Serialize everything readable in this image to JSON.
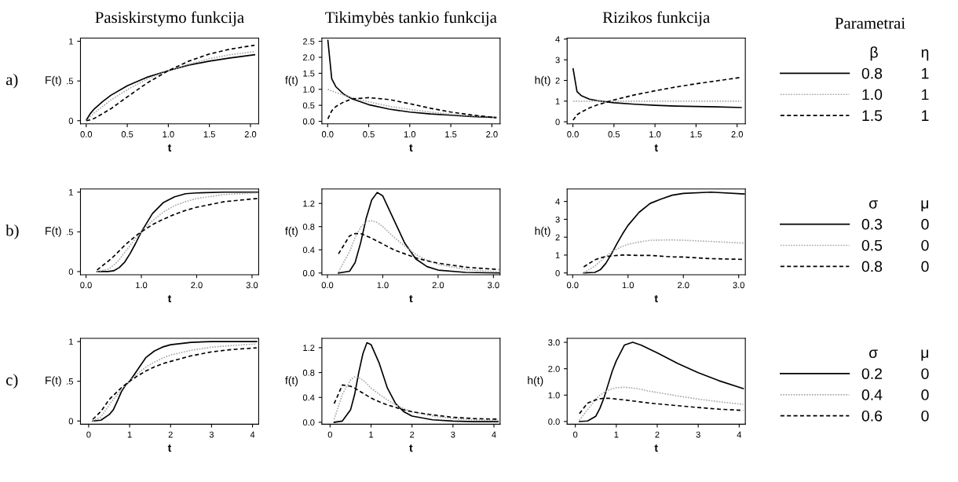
{
  "chart_data": [
    {
      "type": "line",
      "title": "Pasiskirstymo funkcija",
      "xlabel": "t",
      "ylabel": "F(t)",
      "annotations": [
        "a)"
      ],
      "x": [
        0.003,
        0.05,
        0.1,
        0.2,
        0.3,
        0.5,
        0.75,
        1.0,
        1.25,
        1.5,
        1.75,
        2.05
      ],
      "xlim": [
        -0.07,
        2.1
      ],
      "xticks": [
        {
          "value": 0,
          "label": "0.0"
        },
        0.5,
        {
          "value": 1,
          "label": "1.0"
        },
        1.5,
        {
          "value": 2,
          "label": "2.0"
        }
      ],
      "ylim": [
        -0.04,
        1.04
      ],
      "yticks": [
        0,
        {
          "value": 0.5,
          "label": ".5"
        },
        1
      ],
      "series": [
        {
          "color": "#000000",
          "line_style": "solid",
          "values": [
            0.01,
            0.09,
            0.15,
            0.24,
            0.32,
            0.44,
            0.55,
            0.63,
            0.7,
            0.75,
            0.79,
            0.83
          ]
        },
        {
          "color": "#aaaaaa",
          "line_style": "dotted",
          "values": [
            0.0,
            0.05,
            0.1,
            0.18,
            0.26,
            0.39,
            0.53,
            0.63,
            0.71,
            0.78,
            0.83,
            0.87
          ]
        },
        {
          "color": "#000000",
          "line_style": "dashed",
          "values": [
            0.0,
            0.01,
            0.03,
            0.09,
            0.15,
            0.3,
            0.48,
            0.63,
            0.75,
            0.84,
            0.9,
            0.95
          ]
        }
      ]
    },
    {
      "type": "line",
      "title": "Tikimybės tankio funkcija",
      "xlabel": "t",
      "ylabel": "f(t)",
      "x": [
        0.003,
        0.05,
        0.1,
        0.2,
        0.3,
        0.5,
        0.75,
        1.0,
        1.25,
        1.5,
        1.75,
        2.05
      ],
      "xlim": [
        -0.07,
        2.1
      ],
      "xticks": [
        {
          "value": 0,
          "label": "0.0"
        },
        0.5,
        {
          "value": 1,
          "label": "1.0"
        },
        1.5,
        {
          "value": 2,
          "label": "2.0"
        }
      ],
      "ylim": [
        -0.08,
        2.6
      ],
      "yticks": [
        {
          "value": 0,
          "label": "0.0"
        },
        0.5,
        {
          "value": 1,
          "label": "1.0"
        },
        1.5,
        {
          "value": 2,
          "label": "2.0"
        },
        2.5
      ],
      "series": [
        {
          "color": "#000000",
          "line_style": "solid",
          "values": [
            2.53,
            1.33,
            1.08,
            0.84,
            0.7,
            0.52,
            0.38,
            0.29,
            0.23,
            0.19,
            0.15,
            0.12
          ]
        },
        {
          "color": "#aaaaaa",
          "line_style": "dotted",
          "values": [
            1.0,
            0.95,
            0.9,
            0.82,
            0.74,
            0.61,
            0.47,
            0.37,
            0.29,
            0.22,
            0.17,
            0.13
          ]
        },
        {
          "color": "#000000",
          "line_style": "dashed",
          "values": [
            0.08,
            0.33,
            0.46,
            0.61,
            0.7,
            0.74,
            0.68,
            0.55,
            0.41,
            0.29,
            0.2,
            0.11
          ]
        }
      ]
    },
    {
      "type": "line",
      "title": "Rizikos funkcija",
      "xlabel": "t",
      "ylabel": "h(t)",
      "annotations": [
        "Parametrai"
      ],
      "legend": "right",
      "legend_title": "β          η",
      "x": [
        0.003,
        0.05,
        0.1,
        0.2,
        0.3,
        0.5,
        0.75,
        1.0,
        1.25,
        1.5,
        1.75,
        2.05
      ],
      "xlim": [
        -0.07,
        2.1
      ],
      "xticks": [
        {
          "value": 0,
          "label": "0.0"
        },
        0.5,
        {
          "value": 1,
          "label": "1.0"
        },
        1.5,
        {
          "value": 2,
          "label": "2.0"
        }
      ],
      "ylim": [
        -0.1,
        4.05
      ],
      "yticks": [
        0,
        1,
        2,
        3,
        4
      ],
      "series": [
        {
          "name": "0.8         1",
          "color": "#000000",
          "line_style": "solid",
          "values": [
            2.56,
            1.46,
            1.27,
            1.1,
            1.02,
            0.92,
            0.85,
            0.8,
            0.76,
            0.74,
            0.72,
            0.69
          ]
        },
        {
          "name": "1.0         1",
          "color": "#aaaaaa",
          "line_style": "dotted",
          "values": [
            1,
            1,
            1,
            1,
            1,
            1,
            1,
            1,
            1,
            1,
            1,
            1
          ]
        },
        {
          "name": "1.5         1",
          "color": "#000000",
          "line_style": "dashed",
          "values": [
            0.08,
            0.34,
            0.47,
            0.67,
            0.82,
            1.06,
            1.3,
            1.5,
            1.68,
            1.84,
            1.98,
            2.15
          ]
        }
      ]
    },
    {
      "type": "line",
      "xlabel": "t",
      "ylabel": "F(t)",
      "annotations": [
        "b)"
      ],
      "x": [
        0.2,
        0.4,
        0.5,
        0.6,
        0.7,
        0.8,
        0.9,
        1.0,
        1.2,
        1.4,
        1.6,
        1.8,
        2.0,
        2.5,
        3.1
      ],
      "xlim": [
        -0.1,
        3.12
      ],
      "xticks": [
        {
          "value": 0,
          "label": "0.0"
        },
        {
          "value": 1,
          "label": "1.0"
        },
        {
          "value": 2,
          "label": "2.0"
        },
        {
          "value": 3,
          "label": "3.0"
        }
      ],
      "ylim": [
        -0.04,
        1.04
      ],
      "yticks": [
        0,
        {
          "value": 0.5,
          "label": ".5"
        },
        1
      ],
      "series": [
        {
          "color": "#000000",
          "line_style": "solid",
          "values": [
            0.0,
            0.0,
            0.01,
            0.05,
            0.12,
            0.23,
            0.36,
            0.5,
            0.73,
            0.87,
            0.94,
            0.98,
            0.99,
            1.0,
            1.0
          ]
        },
        {
          "color": "#aaaaaa",
          "line_style": "dotted",
          "values": [
            0.0,
            0.03,
            0.08,
            0.15,
            0.24,
            0.33,
            0.42,
            0.5,
            0.64,
            0.75,
            0.83,
            0.88,
            0.92,
            0.97,
            0.99
          ]
        },
        {
          "color": "#000000",
          "line_style": "dashed",
          "values": [
            0.02,
            0.13,
            0.19,
            0.26,
            0.33,
            0.39,
            0.45,
            0.5,
            0.59,
            0.66,
            0.72,
            0.77,
            0.81,
            0.88,
            0.92
          ]
        }
      ]
    },
    {
      "type": "line",
      "xlabel": "t",
      "ylabel": "f(t)",
      "x": [
        0.2,
        0.4,
        0.5,
        0.6,
        0.7,
        0.8,
        0.9,
        1.0,
        1.2,
        1.4,
        1.6,
        1.8,
        2.0,
        2.5,
        3.1
      ],
      "xlim": [
        -0.1,
        3.12
      ],
      "xticks": [
        {
          "value": 0,
          "label": "0.0"
        },
        {
          "value": 1,
          "label": "1.0"
        },
        {
          "value": 2,
          "label": "2.0"
        },
        {
          "value": 3,
          "label": "3.0"
        }
      ],
      "ylim": [
        -0.03,
        1.45
      ],
      "yticks": [
        {
          "value": 0,
          "label": "0.0"
        },
        0.4,
        0.8,
        1.2
      ],
      "series": [
        {
          "color": "#000000",
          "line_style": "solid",
          "values": [
            0.0,
            0.03,
            0.18,
            0.52,
            0.94,
            1.26,
            1.39,
            1.33,
            0.92,
            0.51,
            0.24,
            0.11,
            0.05,
            0.01,
            0.0
          ]
        },
        {
          "color": "#aaaaaa",
          "line_style": "dotted",
          "values": [
            0.02,
            0.37,
            0.61,
            0.79,
            0.89,
            0.9,
            0.87,
            0.8,
            0.62,
            0.46,
            0.32,
            0.22,
            0.15,
            0.06,
            0.02
          ]
        },
        {
          "color": "#000000",
          "line_style": "dashed",
          "values": [
            0.33,
            0.64,
            0.68,
            0.68,
            0.64,
            0.6,
            0.55,
            0.5,
            0.4,
            0.33,
            0.26,
            0.21,
            0.17,
            0.1,
            0.06
          ]
        }
      ]
    },
    {
      "type": "line",
      "xlabel": "t",
      "ylabel": "h(t)",
      "legend": "right",
      "legend_title": "σ          μ",
      "x": [
        0.2,
        0.4,
        0.5,
        0.6,
        0.7,
        0.8,
        0.9,
        1.0,
        1.2,
        1.4,
        1.6,
        1.8,
        2.0,
        2.5,
        3.1
      ],
      "xlim": [
        -0.1,
        3.12
      ],
      "xticks": [
        {
          "value": 0,
          "label": "0.0"
        },
        {
          "value": 1,
          "label": "1.0"
        },
        {
          "value": 2,
          "label": "2.0"
        },
        {
          "value": 3,
          "label": "3.0"
        }
      ],
      "ylim": [
        -0.1,
        4.7
      ],
      "yticks": [
        0,
        1,
        2,
        3,
        4
      ],
      "series": [
        {
          "name": "0.3         0",
          "color": "#000000",
          "line_style": "solid",
          "values": [
            0.0,
            0.03,
            0.18,
            0.54,
            1.06,
            1.64,
            2.18,
            2.66,
            3.39,
            3.89,
            4.14,
            4.35,
            4.45,
            4.52,
            4.42
          ]
        },
        {
          "name": "0.5         0",
          "color": "#aaaaaa",
          "line_style": "dotted",
          "values": [
            0.02,
            0.38,
            0.66,
            0.93,
            1.17,
            1.34,
            1.49,
            1.6,
            1.73,
            1.83,
            1.84,
            1.85,
            1.83,
            1.76,
            1.67
          ]
        },
        {
          "name": "0.8         0",
          "color": "#000000",
          "line_style": "dashed",
          "values": [
            0.34,
            0.73,
            0.84,
            0.92,
            0.95,
            0.98,
            1.0,
            1.0,
            0.98,
            0.98,
            0.94,
            0.9,
            0.89,
            0.8,
            0.76
          ]
        }
      ]
    },
    {
      "type": "line",
      "xlabel": "t",
      "ylabel": "F(t)",
      "annotations": [
        "c)"
      ],
      "x": [
        0.1,
        0.3,
        0.5,
        0.6,
        0.7,
        0.8,
        0.9,
        1.0,
        1.2,
        1.4,
        1.6,
        1.8,
        2.0,
        2.5,
        3.0,
        3.5,
        4.1
      ],
      "xlim": [
        -0.2,
        4.15
      ],
      "xticks": [
        0,
        1,
        2,
        3,
        4
      ],
      "ylim": [
        -0.04,
        1.04
      ],
      "yticks": [
        0,
        {
          "value": 0.5,
          "label": ".5"
        },
        1
      ],
      "series": [
        {
          "color": "#000000",
          "line_style": "solid",
          "values": [
            0.0,
            0.01,
            0.08,
            0.14,
            0.25,
            0.37,
            0.45,
            0.5,
            0.65,
            0.8,
            0.88,
            0.93,
            0.96,
            0.99,
            1.0,
            1.0,
            1.0
          ]
        },
        {
          "color": "#aaaaaa",
          "line_style": "dotted",
          "values": [
            0.0,
            0.05,
            0.2,
            0.27,
            0.33,
            0.4,
            0.45,
            0.5,
            0.6,
            0.68,
            0.74,
            0.79,
            0.83,
            0.89,
            0.93,
            0.95,
            0.97
          ]
        },
        {
          "color": "#000000",
          "line_style": "dashed",
          "values": [
            0.02,
            0.12,
            0.27,
            0.32,
            0.37,
            0.42,
            0.46,
            0.5,
            0.57,
            0.63,
            0.68,
            0.72,
            0.75,
            0.82,
            0.87,
            0.9,
            0.92
          ]
        }
      ]
    },
    {
      "type": "line",
      "xlabel": "t",
      "ylabel": "f(t)",
      "x": [
        0.1,
        0.3,
        0.5,
        0.6,
        0.7,
        0.8,
        0.9,
        1.0,
        1.2,
        1.4,
        1.6,
        1.8,
        2.0,
        2.5,
        3.0,
        3.5,
        4.1
      ],
      "xlim": [
        -0.2,
        4.15
      ],
      "xticks": [
        0,
        1,
        2,
        3,
        4
      ],
      "ylim": [
        -0.03,
        1.35
      ],
      "yticks": [
        {
          "value": 0,
          "label": "0.0"
        },
        0.4,
        0.8,
        1.2
      ],
      "series": [
        {
          "color": "#000000",
          "line_style": "solid",
          "values": [
            0.0,
            0.02,
            0.2,
            0.45,
            0.8,
            1.1,
            1.28,
            1.25,
            0.95,
            0.55,
            0.3,
            0.17,
            0.1,
            0.04,
            0.02,
            0.01,
            0.01
          ]
        },
        {
          "color": "#aaaaaa",
          "line_style": "dotted",
          "values": [
            0.05,
            0.45,
            0.68,
            0.73,
            0.72,
            0.68,
            0.62,
            0.55,
            0.45,
            0.36,
            0.28,
            0.22,
            0.17,
            0.1,
            0.06,
            0.04,
            0.03
          ]
        },
        {
          "color": "#000000",
          "line_style": "dashed",
          "values": [
            0.3,
            0.6,
            0.58,
            0.55,
            0.51,
            0.47,
            0.43,
            0.39,
            0.33,
            0.28,
            0.24,
            0.2,
            0.17,
            0.12,
            0.08,
            0.06,
            0.05
          ]
        }
      ]
    },
    {
      "type": "line",
      "xlabel": "t",
      "ylabel": "h(t)",
      "legend": "right",
      "legend_title": "σ          μ",
      "x": [
        0.1,
        0.3,
        0.5,
        0.6,
        0.7,
        0.8,
        0.9,
        1.0,
        1.2,
        1.4,
        1.6,
        1.8,
        2.0,
        2.5,
        3.0,
        3.5,
        4.1
      ],
      "xlim": [
        -0.2,
        4.15
      ],
      "xticks": [
        0,
        1,
        2,
        3,
        4
      ],
      "ylim": [
        -0.1,
        3.15
      ],
      "yticks": [
        {
          "value": 0,
          "label": "0.0"
        },
        {
          "value": 1,
          "label": "1.0"
        },
        {
          "value": 2,
          "label": "2.0"
        },
        {
          "value": 3,
          "label": "3.0"
        }
      ],
      "series": [
        {
          "name": "0.2         0",
          "color": "#000000",
          "line_style": "solid",
          "values": [
            0.0,
            0.02,
            0.2,
            0.5,
            0.9,
            1.4,
            1.9,
            2.3,
            2.9,
            3.0,
            2.9,
            2.75,
            2.6,
            2.2,
            1.85,
            1.55,
            1.25
          ]
        },
        {
          "name": "0.4         0",
          "color": "#aaaaaa",
          "line_style": "dotted",
          "values": [
            0.05,
            0.45,
            0.85,
            1.0,
            1.1,
            1.18,
            1.24,
            1.28,
            1.3,
            1.27,
            1.22,
            1.15,
            1.1,
            0.97,
            0.85,
            0.75,
            0.65
          ]
        },
        {
          "name": "0.6         0",
          "color": "#000000",
          "line_style": "dashed",
          "values": [
            0.3,
            0.7,
            0.82,
            0.86,
            0.88,
            0.88,
            0.87,
            0.85,
            0.82,
            0.78,
            0.74,
            0.7,
            0.67,
            0.6,
            0.53,
            0.47,
            0.42
          ]
        }
      ]
    }
  ]
}
